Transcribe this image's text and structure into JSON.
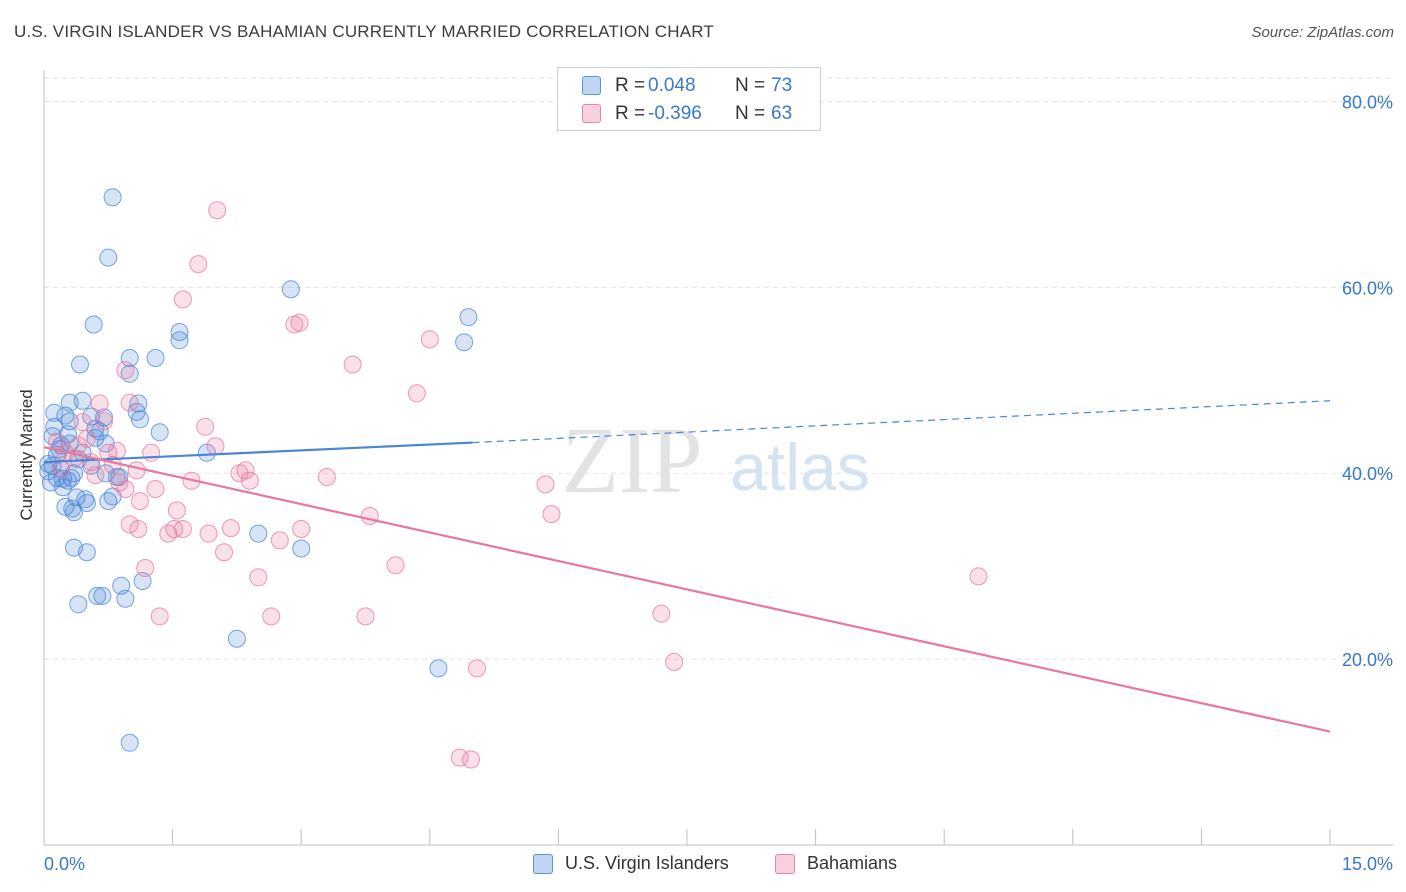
{
  "title": "U.S. VIRGIN ISLANDER VS BAHAMIAN CURRENTLY MARRIED CORRELATION CHART",
  "source": "Source: ZipAtlas.com",
  "watermark": {
    "zip": "ZIP",
    "atlas": "atlas"
  },
  "stats": [
    {
      "r_label": "R =",
      "r_value": "0.048",
      "n_label": "N =",
      "n_value": "73",
      "color": "#4a86d8"
    },
    {
      "r_label": "R =",
      "r_value": "-0.396",
      "n_label": "N =",
      "n_value": "63",
      "color": "#e8779d"
    }
  ],
  "legend": [
    {
      "label": "U.S. Virgin Islanders",
      "color": "#4a86d8"
    },
    {
      "label": "Bahamians",
      "color": "#e8779d"
    }
  ],
  "chart_data": {
    "type": "scatter",
    "title": "U.S. VIRGIN ISLANDER VS BAHAMIAN CURRENTLY MARRIED CORRELATION CHART",
    "ylabel": "Currently Married",
    "xlim": [
      0,
      15
    ],
    "ylim": [
      0,
      85
    ],
    "x_tick_labels": [
      "0.0%",
      "15.0%"
    ],
    "y_ticks": [
      20,
      40,
      60,
      80
    ],
    "y_tick_labels": [
      "20.0%",
      "40.0%",
      "60.0%",
      "80.0%"
    ],
    "grid": true,
    "legend_position": "bottom-center",
    "series": [
      {
        "name": "U.S. Virgin Islanders",
        "color": "#4a86d8",
        "trend": {
          "x": [
            0.0,
            5.0
          ],
          "y": [
            41.2,
            43.3
          ],
          "dashed_to_x": 15.0,
          "dashed_to_y": 47.8
        },
        "points": [
          [
            0.05,
            40.2
          ],
          [
            0.08,
            39.0
          ],
          [
            0.1,
            44.0
          ],
          [
            0.1,
            40.8
          ],
          [
            0.12,
            46.5
          ],
          [
            0.15,
            39.5
          ],
          [
            0.18,
            42.6
          ],
          [
            0.2,
            43.0
          ],
          [
            0.2,
            40.5
          ],
          [
            0.22,
            39.4
          ],
          [
            0.25,
            46.2
          ],
          [
            0.25,
            36.4
          ],
          [
            0.28,
            39.2
          ],
          [
            0.3,
            47.6
          ],
          [
            0.3,
            45.6
          ],
          [
            0.3,
            43.2
          ],
          [
            0.32,
            39.5
          ],
          [
            0.33,
            36.2
          ],
          [
            0.35,
            35.8
          ],
          [
            0.35,
            32.0
          ],
          [
            0.38,
            37.4
          ],
          [
            0.4,
            25.9
          ],
          [
            0.42,
            51.7
          ],
          [
            0.45,
            47.8
          ],
          [
            0.45,
            42.2
          ],
          [
            0.48,
            37.2
          ],
          [
            0.5,
            36.8
          ],
          [
            0.5,
            31.5
          ],
          [
            0.55,
            46.1
          ],
          [
            0.58,
            56.0
          ],
          [
            0.6,
            44.8
          ],
          [
            0.6,
            43.8
          ],
          [
            0.62,
            26.8
          ],
          [
            0.68,
            26.8
          ],
          [
            0.7,
            46.0
          ],
          [
            0.72,
            43.2
          ],
          [
            0.72,
            40.0
          ],
          [
            0.75,
            63.2
          ],
          [
            0.75,
            37.0
          ],
          [
            0.8,
            69.7
          ],
          [
            0.8,
            37.5
          ],
          [
            0.85,
            39.6
          ],
          [
            0.88,
            39.6
          ],
          [
            0.9,
            27.9
          ],
          [
            0.95,
            26.5
          ],
          [
            1.0,
            11.0
          ],
          [
            1.0,
            52.4
          ],
          [
            1.0,
            50.7
          ],
          [
            1.08,
            46.6
          ],
          [
            1.1,
            47.5
          ],
          [
            1.12,
            45.8
          ],
          [
            1.15,
            28.4
          ],
          [
            1.3,
            52.4
          ],
          [
            1.35,
            44.4
          ],
          [
            1.58,
            55.2
          ],
          [
            1.58,
            54.3
          ],
          [
            1.9,
            42.2
          ],
          [
            2.25,
            22.2
          ],
          [
            2.5,
            33.5
          ],
          [
            2.88,
            59.8
          ],
          [
            3.0,
            31.9
          ],
          [
            4.6,
            19.0
          ],
          [
            4.9,
            54.1
          ],
          [
            4.95,
            56.8
          ],
          [
            0.05,
            41.0
          ],
          [
            0.15,
            42.0
          ],
          [
            0.22,
            38.5
          ],
          [
            0.4,
            41.5
          ],
          [
            0.55,
            40.8
          ],
          [
            0.65,
            44.5
          ],
          [
            0.12,
            45.0
          ],
          [
            0.35,
            40.0
          ],
          [
            0.28,
            44.2
          ]
        ]
      },
      {
        "name": "Bahamians",
        "color": "#e8779d",
        "trend": {
          "x": [
            0.0,
            15.0
          ],
          "y": [
            42.8,
            12.2
          ]
        },
        "points": [
          [
            0.15,
            43.4
          ],
          [
            0.2,
            40.5
          ],
          [
            0.25,
            42.2
          ],
          [
            0.35,
            41.6
          ],
          [
            0.45,
            45.5
          ],
          [
            0.5,
            43.7
          ],
          [
            0.55,
            41.2
          ],
          [
            0.6,
            39.8
          ],
          [
            0.65,
            47.5
          ],
          [
            0.7,
            45.6
          ],
          [
            0.75,
            42.2
          ],
          [
            0.8,
            40.9
          ],
          [
            0.85,
            42.4
          ],
          [
            0.88,
            39.0
          ],
          [
            0.95,
            51.1
          ],
          [
            0.95,
            38.3
          ],
          [
            1.0,
            47.6
          ],
          [
            1.0,
            34.5
          ],
          [
            1.08,
            40.3
          ],
          [
            1.1,
            34.0
          ],
          [
            1.12,
            37.0
          ],
          [
            1.18,
            29.8
          ],
          [
            1.25,
            42.2
          ],
          [
            1.3,
            38.3
          ],
          [
            1.35,
            24.6
          ],
          [
            1.45,
            33.5
          ],
          [
            1.52,
            34.0
          ],
          [
            1.55,
            36.0
          ],
          [
            1.62,
            34.0
          ],
          [
            1.62,
            58.7
          ],
          [
            1.72,
            39.2
          ],
          [
            1.8,
            62.5
          ],
          [
            1.88,
            45.0
          ],
          [
            1.92,
            33.5
          ],
          [
            2.0,
            42.9
          ],
          [
            2.02,
            68.3
          ],
          [
            2.1,
            31.5
          ],
          [
            2.18,
            34.1
          ],
          [
            2.28,
            40.0
          ],
          [
            2.35,
            40.3
          ],
          [
            2.4,
            39.2
          ],
          [
            2.5,
            28.8
          ],
          [
            2.65,
            24.6
          ],
          [
            2.75,
            32.8
          ],
          [
            2.92,
            56.0
          ],
          [
            2.98,
            56.2
          ],
          [
            3.0,
            34.0
          ],
          [
            3.3,
            39.6
          ],
          [
            3.6,
            51.7
          ],
          [
            3.75,
            24.6
          ],
          [
            3.8,
            35.4
          ],
          [
            4.1,
            30.1
          ],
          [
            4.35,
            48.6
          ],
          [
            4.5,
            54.4
          ],
          [
            4.85,
            9.4
          ],
          [
            4.98,
            9.2
          ],
          [
            5.05,
            19.0
          ],
          [
            5.85,
            38.8
          ],
          [
            5.92,
            35.6
          ],
          [
            7.2,
            24.9
          ],
          [
            7.35,
            19.7
          ],
          [
            10.9,
            28.9
          ],
          [
            0.4,
            43.0
          ]
        ]
      }
    ]
  }
}
